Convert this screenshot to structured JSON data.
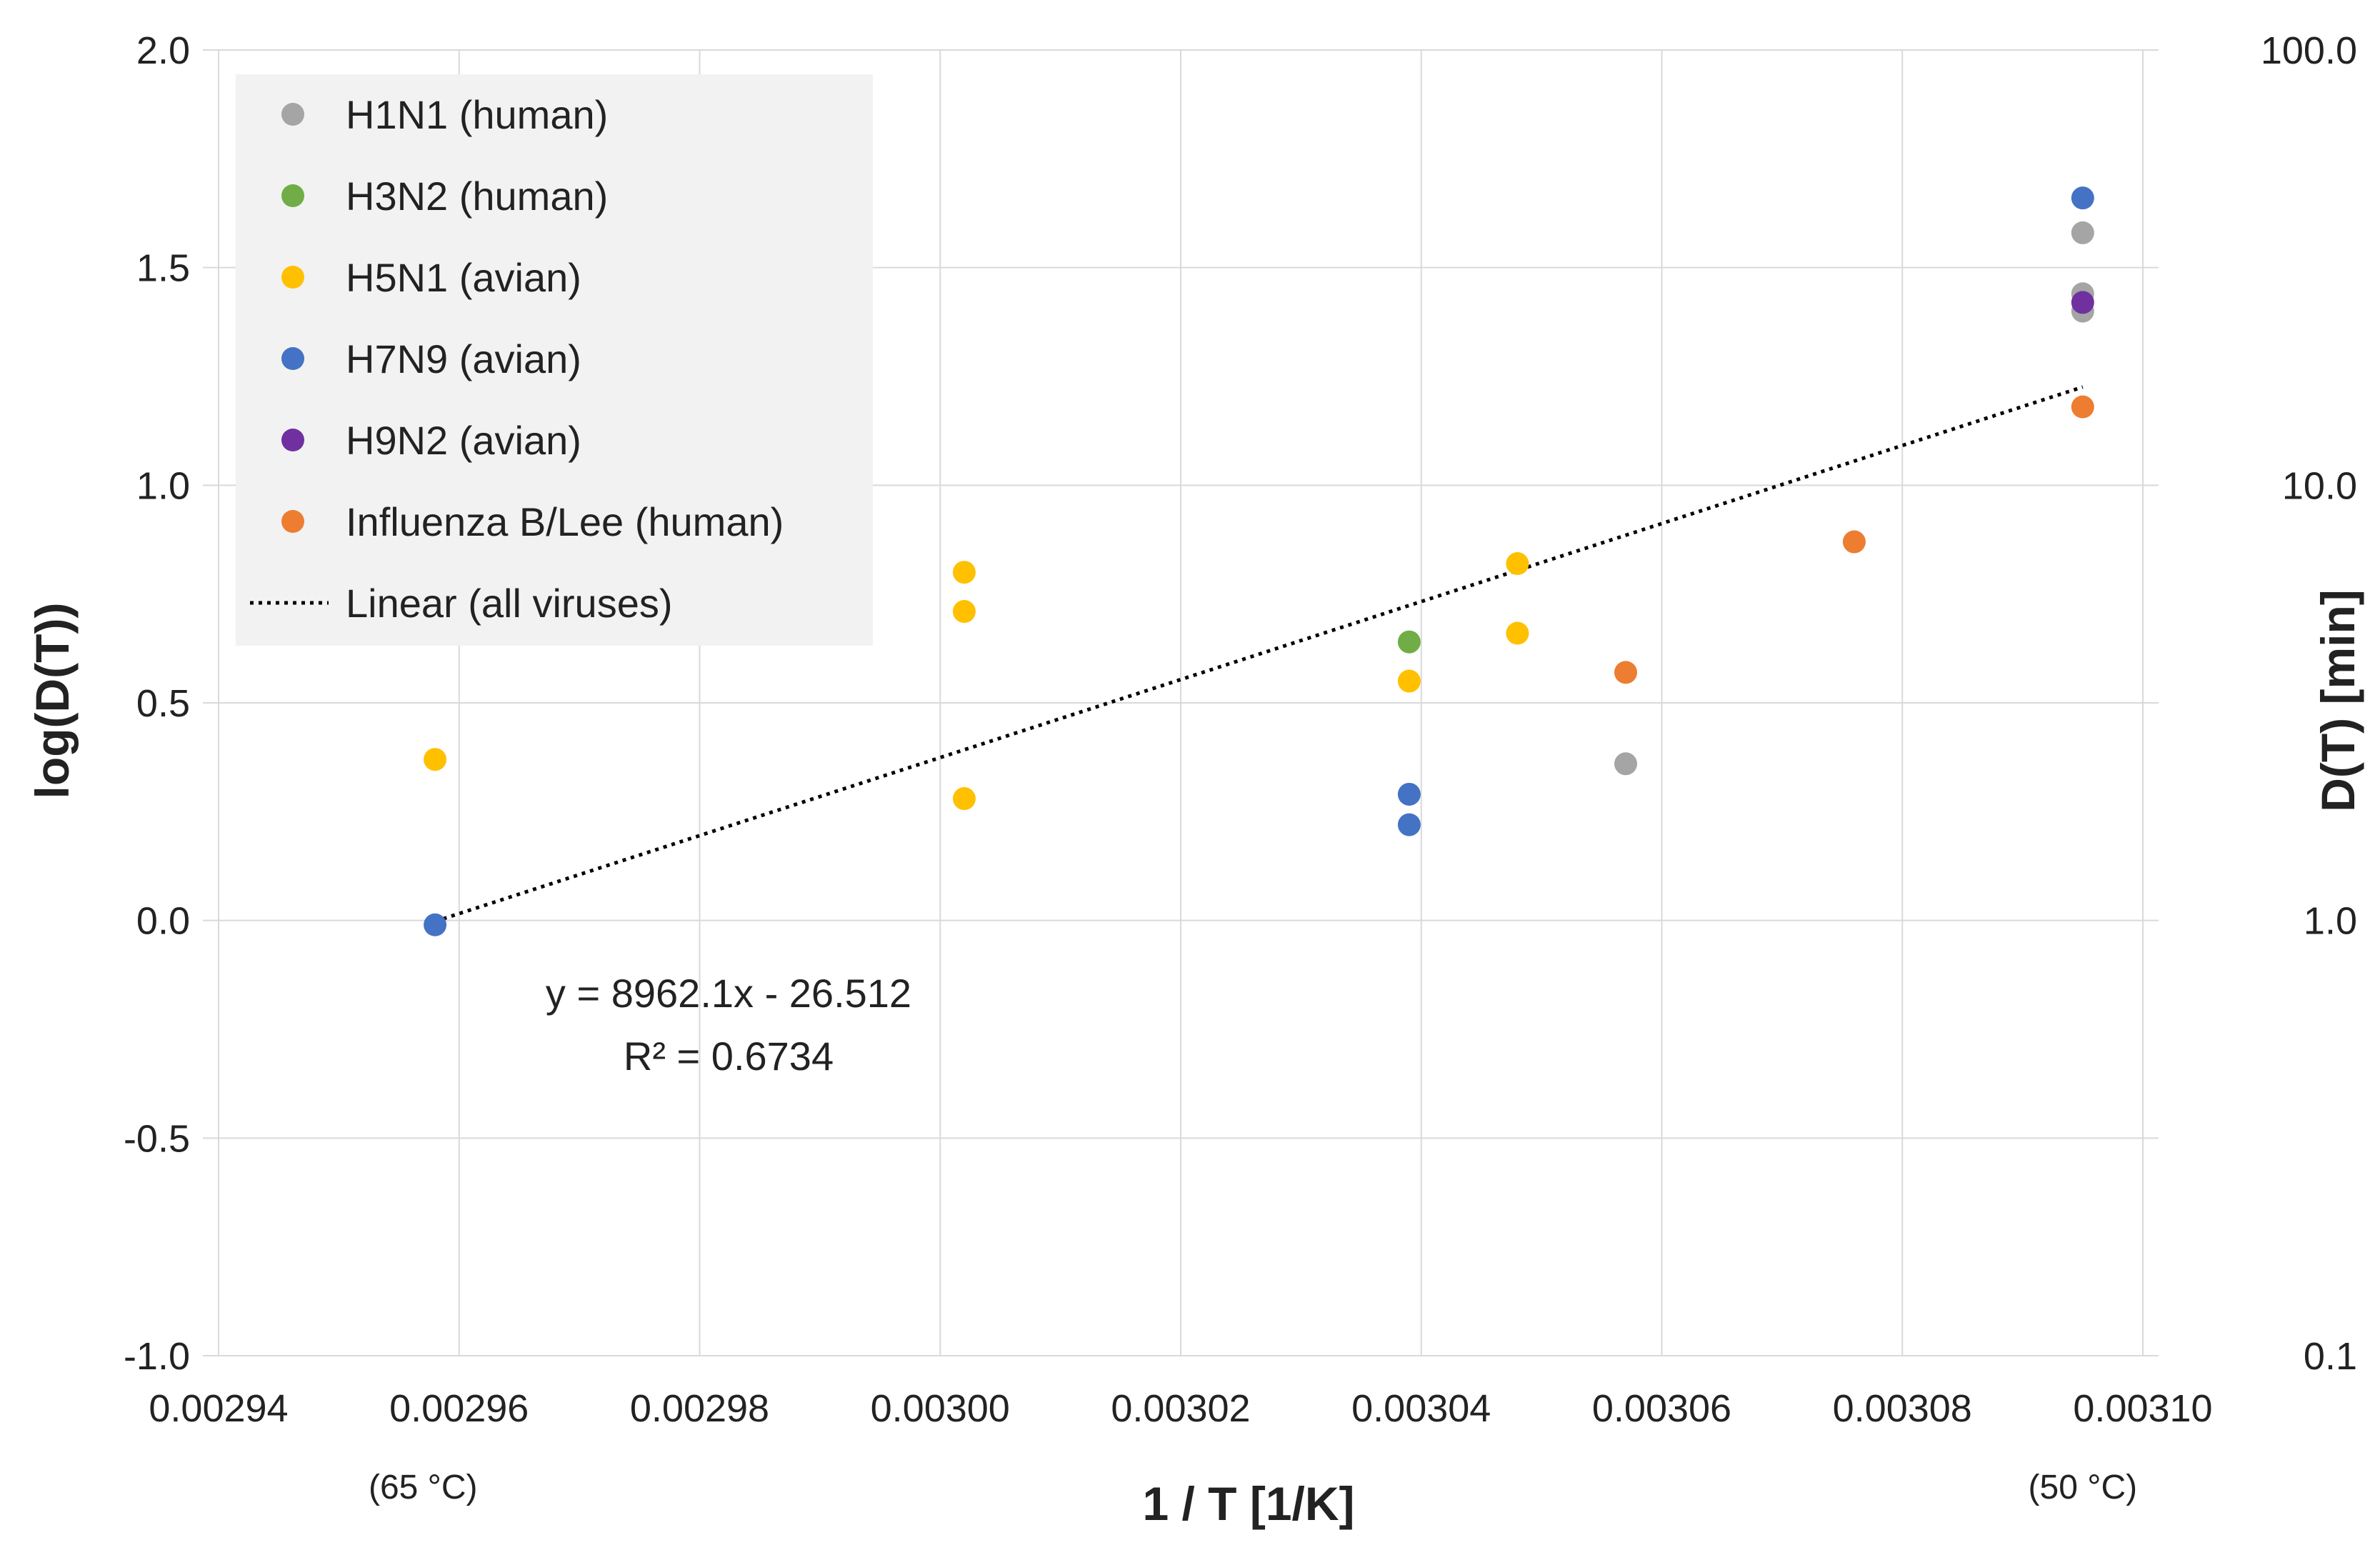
{
  "chart_data": {
    "type": "scatter",
    "title": "",
    "xlabel": "1 / T   [1/K]",
    "ylabel": "log(D(T))",
    "y2label": "D(T) [min]",
    "xlim": [
      0.00294,
      0.0031
    ],
    "ylim": [
      -1.0,
      2.0
    ],
    "y2_scale": "log",
    "y2lim": [
      0.1,
      100.0
    ],
    "grid": true,
    "legend_position": "top-left",
    "x_ticks": [
      "0.00294",
      "0.00296",
      "0.00298",
      "0.00300",
      "0.00302",
      "0.00304",
      "0.00306",
      "0.00308",
      "0.00310"
    ],
    "y_ticks": [
      "2.0",
      "1.5",
      "1.0",
      "0.5",
      "0.0",
      "-0.5",
      "-1.0"
    ],
    "y2_ticks": [
      "100.0",
      "10.0",
      "1.0",
      "0.1"
    ],
    "x_notes": [
      {
        "x": 0.002957,
        "text": "(65 °C)"
      },
      {
        "x": 0.003095,
        "text": "(50 °C)"
      }
    ],
    "series": [
      {
        "name": "H1N1 (human)",
        "color": "#a5a5a5",
        "points": [
          {
            "x": 0.003095,
            "y": 1.58
          },
          {
            "x": 0.003095,
            "y": 1.44
          },
          {
            "x": 0.003095,
            "y": 1.4
          },
          {
            "x": 0.003057,
            "y": 0.36
          }
        ]
      },
      {
        "name": "H3N2 (human)",
        "color": "#70ad47",
        "points": [
          {
            "x": 0.003039,
            "y": 0.64
          }
        ]
      },
      {
        "name": "H5N1 (avian)",
        "color": "#ffc000",
        "points": [
          {
            "x": 0.002958,
            "y": 0.37
          },
          {
            "x": 0.003002,
            "y": 0.8
          },
          {
            "x": 0.003002,
            "y": 0.71
          },
          {
            "x": 0.003002,
            "y": 0.28
          },
          {
            "x": 0.003039,
            "y": 0.55
          },
          {
            "x": 0.003048,
            "y": 0.82
          },
          {
            "x": 0.003048,
            "y": 0.66
          }
        ]
      },
      {
        "name": "H7N9 (avian)",
        "color": "#4472c4",
        "points": [
          {
            "x": 0.003095,
            "y": 1.66
          },
          {
            "x": 0.002958,
            "y": -0.01
          },
          {
            "x": 0.003039,
            "y": 0.29
          },
          {
            "x": 0.003039,
            "y": 0.22
          }
        ]
      },
      {
        "name": "H9N2 (avian)",
        "color": "#7030a0",
        "points": [
          {
            "x": 0.003095,
            "y": 1.42
          }
        ]
      },
      {
        "name": "Influenza B/Lee (human)",
        "color": "#ed7d31",
        "points": [
          {
            "x": 0.003095,
            "y": 1.18
          },
          {
            "x": 0.003076,
            "y": 0.87
          },
          {
            "x": 0.003057,
            "y": 0.57
          }
        ]
      }
    ],
    "trendline": {
      "name": "Linear (all viruses)",
      "color": "#000000",
      "style": "dotted",
      "slope": 8962.1,
      "intercept": -26.512,
      "x_range": [
        0.002958,
        0.003095
      ],
      "equation": "y = 8962.1x - 26.512",
      "r2": "R² = 0.6734"
    }
  }
}
